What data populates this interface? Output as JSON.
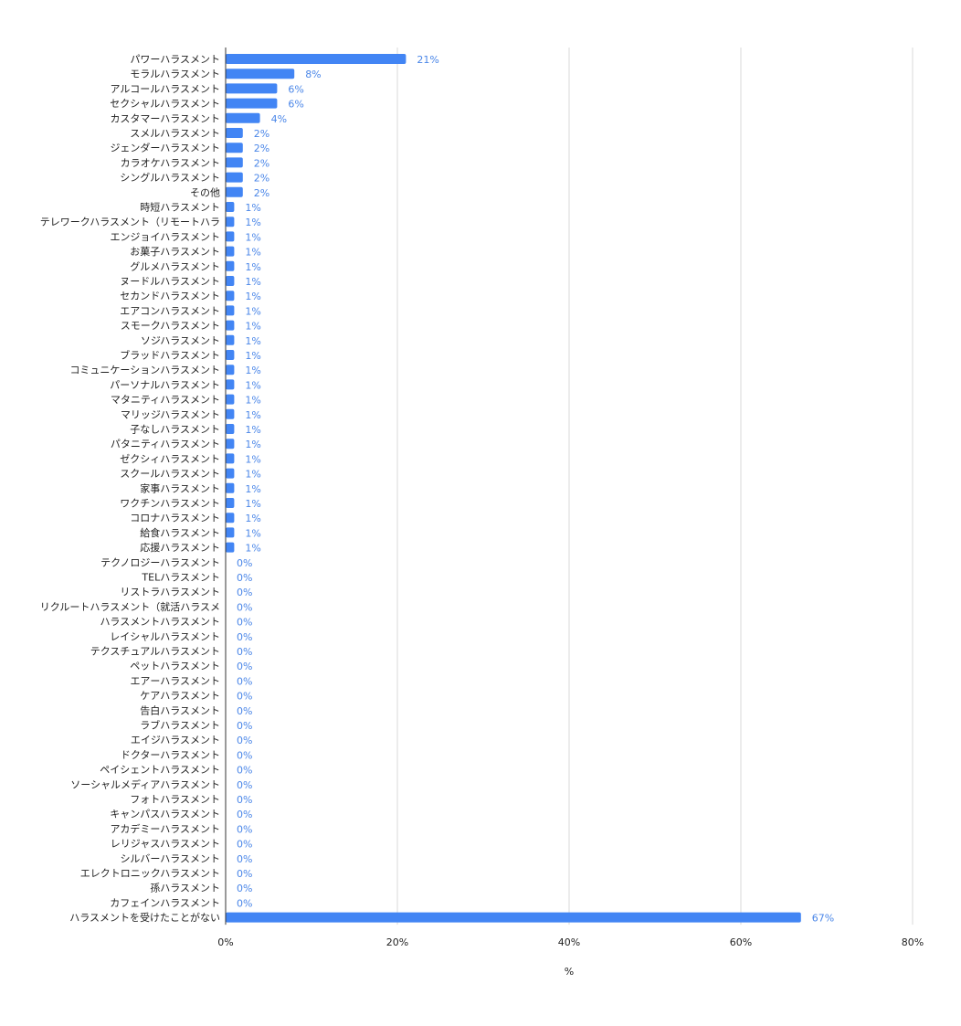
{
  "chart_data": {
    "type": "bar",
    "orientation": "horizontal",
    "title": "",
    "xlabel": "%",
    "ylabel": "",
    "xlim": [
      0,
      80
    ],
    "x_ticks": [
      0,
      20,
      40,
      60,
      80
    ],
    "x_tick_labels": [
      "0%",
      "20%",
      "40%",
      "60%",
      "80%"
    ],
    "grid": true,
    "legend": "none",
    "bar_color": "#4285f4",
    "label_color": "#4a86e8",
    "categories": [
      "パワーハラスメント",
      "モラルハラスメント",
      "アルコールハラスメント",
      "セクシャルハラスメント",
      "カスタマーハラスメント",
      "スメルハラスメント",
      "ジェンダーハラスメント",
      "カラオケハラスメント",
      "シングルハラスメント",
      "その他",
      "時短ハラスメント",
      "テレワークハラスメント（リモートハラ",
      "エンジョイハラスメント",
      "お菓子ハラスメント",
      "グルメハラスメント",
      "ヌードルハラスメント",
      "セカンドハラスメント",
      "エアコンハラスメント",
      "スモークハラスメント",
      "ソジハラスメント",
      "ブラッドハラスメント",
      "コミュニケーションハラスメント",
      "パーソナルハラスメント",
      "マタニティハラスメント",
      "マリッジハラスメント",
      "子なしハラスメント",
      "パタニティハラスメント",
      "ゼクシィハラスメント",
      "スクールハラスメント",
      "家事ハラスメント",
      "ワクチンハラスメント",
      "コロナハラスメント",
      "給食ハラスメント",
      "応援ハラスメント",
      "テクノロジーハラスメント",
      "TELハラスメント",
      "リストラハラスメント",
      "リクルートハラスメント（就活ハラスメ",
      "ハラスメントハラスメント",
      "レイシャルハラスメント",
      "テクスチュアルハラスメント",
      "ペットハラスメント",
      "エアーハラスメント",
      "ケアハラスメント",
      "告白ハラスメント",
      "ラブハラスメント",
      "エイジハラスメント",
      "ドクターハラスメント",
      "ペイシェントハラスメント",
      "ソーシャルメディアハラスメント",
      "フォトハラスメント",
      "キャンパスハラスメント",
      "アカデミーハラスメント",
      "レリジャスハラスメント",
      "シルバーハラスメント",
      "エレクトロニックハラスメント",
      "孫ハラスメント",
      "カフェインハラスメント",
      "ハラスメントを受けたことがない"
    ],
    "values": [
      21,
      8,
      6,
      6,
      4,
      2,
      2,
      2,
      2,
      2,
      1,
      1,
      1,
      1,
      1,
      1,
      1,
      1,
      1,
      1,
      1,
      1,
      1,
      1,
      1,
      1,
      1,
      1,
      1,
      1,
      1,
      1,
      1,
      1,
      0,
      0,
      0,
      0,
      0,
      0,
      0,
      0,
      0,
      0,
      0,
      0,
      0,
      0,
      0,
      0,
      0,
      0,
      0,
      0,
      0,
      0,
      0,
      0,
      67
    ],
    "value_labels": [
      "21%",
      "8%",
      "6%",
      "6%",
      "4%",
      "2%",
      "2%",
      "2%",
      "2%",
      "2%",
      "1%",
      "1%",
      "1%",
      "1%",
      "1%",
      "1%",
      "1%",
      "1%",
      "1%",
      "1%",
      "1%",
      "1%",
      "1%",
      "1%",
      "1%",
      "1%",
      "1%",
      "1%",
      "1%",
      "1%",
      "1%",
      "1%",
      "1%",
      "1%",
      "0%",
      "0%",
      "0%",
      "0%",
      "0%",
      "0%",
      "0%",
      "0%",
      "0%",
      "0%",
      "0%",
      "0%",
      "0%",
      "0%",
      "0%",
      "0%",
      "0%",
      "0%",
      "0%",
      "0%",
      "0%",
      "0%",
      "0%",
      "0%",
      "67%"
    ]
  }
}
